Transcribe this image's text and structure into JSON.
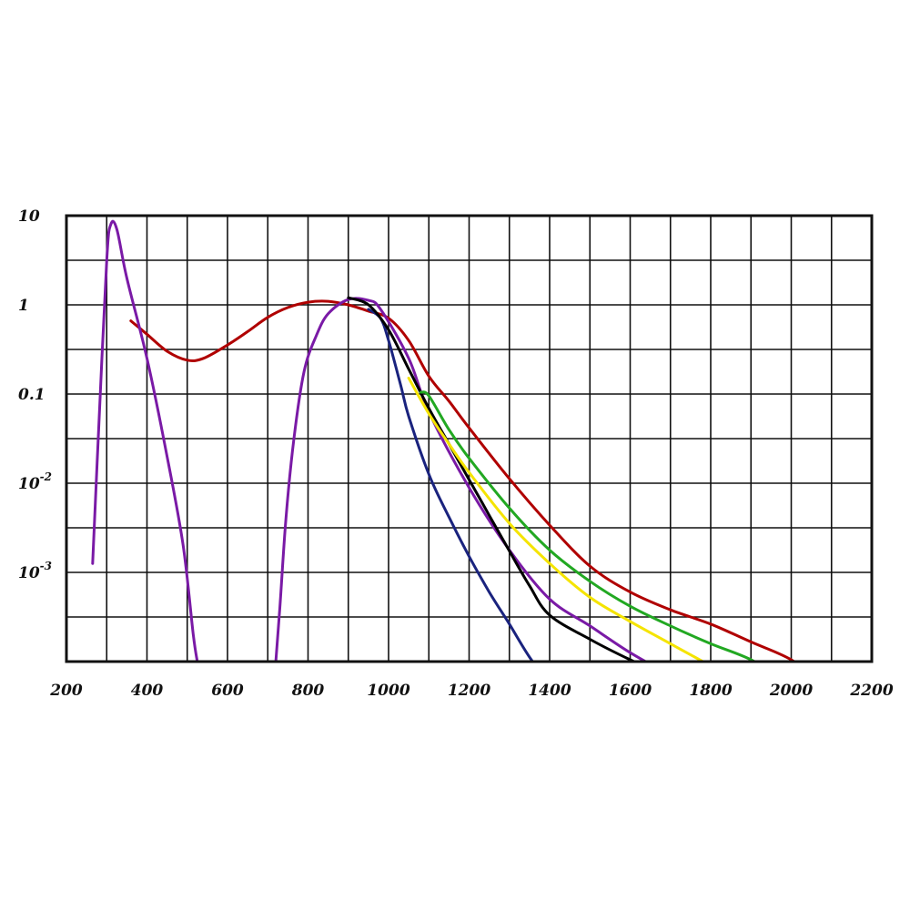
{
  "chart_data": {
    "type": "line",
    "title": "",
    "xlabel": "",
    "ylabel": "",
    "x_range": [
      200,
      2200
    ],
    "y_scale": "log",
    "y_range_log10": [
      -4,
      1
    ],
    "grid": true,
    "x_grid_step": 100,
    "y_grid_step_log10": 0.5,
    "x_tick_labels": [
      {
        "value": 200,
        "label": "200"
      },
      {
        "value": 400,
        "label": "400"
      },
      {
        "value": 600,
        "label": "600"
      },
      {
        "value": 800,
        "label": "800"
      },
      {
        "value": 1000,
        "label": "1000"
      },
      {
        "value": 1200,
        "label": "1200"
      },
      {
        "value": 1400,
        "label": "1400"
      },
      {
        "value": 1600,
        "label": "1600"
      },
      {
        "value": 1800,
        "label": "1800"
      },
      {
        "value": 2000,
        "label": "2000"
      },
      {
        "value": 2200,
        "label": "2200"
      }
    ],
    "y_tick_labels": [
      {
        "log10": 1,
        "label": "10",
        "sup": ""
      },
      {
        "log10": 0,
        "label": "1",
        "sup": ""
      },
      {
        "log10": -1,
        "label": "0.1",
        "sup": ""
      },
      {
        "log10": -2,
        "label": "10",
        "sup": "-2"
      },
      {
        "log10": -3,
        "label": "10",
        "sup": "-3"
      }
    ],
    "series": [
      {
        "color": "#b00000",
        "points": [
          [
            360,
            -0.18
          ],
          [
            400,
            -0.33
          ],
          [
            450,
            -0.52
          ],
          [
            500,
            -0.62
          ],
          [
            540,
            -0.6
          ],
          [
            600,
            -0.45
          ],
          [
            650,
            -0.3
          ],
          [
            700,
            -0.14
          ],
          [
            750,
            -0.03
          ],
          [
            800,
            0.03
          ],
          [
            850,
            0.04
          ],
          [
            900,
            0
          ],
          [
            950,
            -0.07
          ],
          [
            1000,
            -0.15
          ],
          [
            1050,
            -0.4
          ],
          [
            1100,
            -0.8
          ],
          [
            1150,
            -1.08
          ],
          [
            1200,
            -1.38
          ],
          [
            1300,
            -1.95
          ],
          [
            1400,
            -2.47
          ],
          [
            1500,
            -2.93
          ],
          [
            1600,
            -3.22
          ],
          [
            1700,
            -3.42
          ],
          [
            1800,
            -3.58
          ],
          [
            1900,
            -3.78
          ],
          [
            2000,
            -3.98
          ],
          [
            2090,
            -4.28
          ]
        ]
      },
      {
        "color": "#7a1aa6",
        "points": [
          [
            265,
            -2.9
          ],
          [
            280,
            -1.4
          ],
          [
            300,
            0.5
          ],
          [
            310,
            0.9
          ],
          [
            325,
            0.85
          ],
          [
            350,
            0.3
          ],
          [
            400,
            -0.6
          ],
          [
            450,
            -1.7
          ],
          [
            490,
            -2.7
          ],
          [
            515,
            -3.7
          ],
          [
            525,
            -4.0
          ]
        ]
      },
      {
        "color": "#7a1aa6",
        "points": [
          [
            720,
            -4.0
          ],
          [
            730,
            -3.4
          ],
          [
            745,
            -2.4
          ],
          [
            765,
            -1.5
          ],
          [
            790,
            -0.75
          ],
          [
            820,
            -0.35
          ],
          [
            850,
            -0.1
          ],
          [
            900,
            0.06
          ],
          [
            950,
            0.05
          ],
          [
            980,
            -0.05
          ],
          [
            1050,
            -0.6
          ],
          [
            1100,
            -1.2
          ],
          [
            1200,
            -2.05
          ],
          [
            1300,
            -2.75
          ],
          [
            1400,
            -3.3
          ],
          [
            1500,
            -3.6
          ],
          [
            1600,
            -3.9
          ],
          [
            1700,
            -4.15
          ],
          [
            1780,
            -4.32
          ]
        ]
      },
      {
        "color": "#1a237e",
        "points": [
          [
            950,
            -0.05
          ],
          [
            980,
            -0.15
          ],
          [
            1000,
            -0.4
          ],
          [
            1030,
            -0.9
          ],
          [
            1050,
            -1.25
          ],
          [
            1100,
            -1.9
          ],
          [
            1150,
            -2.38
          ],
          [
            1200,
            -2.82
          ],
          [
            1250,
            -3.22
          ],
          [
            1300,
            -3.58
          ],
          [
            1350,
            -3.95
          ],
          [
            1400,
            -4.25
          ],
          [
            1425,
            -4.35
          ]
        ]
      },
      {
        "color": "#000000",
        "points": [
          [
            900,
            0.08
          ],
          [
            950,
            0
          ],
          [
            1000,
            -0.28
          ],
          [
            1050,
            -0.72
          ],
          [
            1100,
            -1.16
          ],
          [
            1150,
            -1.56
          ],
          [
            1200,
            -1.96
          ],
          [
            1250,
            -2.36
          ],
          [
            1300,
            -2.76
          ],
          [
            1350,
            -3.15
          ],
          [
            1400,
            -3.48
          ],
          [
            1500,
            -3.75
          ],
          [
            1600,
            -3.98
          ],
          [
            1700,
            -4.18
          ],
          [
            1750,
            -4.3
          ]
        ]
      },
      {
        "color": "#f5e400",
        "points": [
          [
            1050,
            -0.82
          ],
          [
            1100,
            -1.22
          ],
          [
            1150,
            -1.56
          ],
          [
            1200,
            -1.88
          ],
          [
            1300,
            -2.45
          ],
          [
            1400,
            -2.9
          ],
          [
            1500,
            -3.28
          ],
          [
            1600,
            -3.55
          ],
          [
            1700,
            -3.8
          ],
          [
            1800,
            -4.05
          ],
          [
            1850,
            -4.2
          ]
        ]
      },
      {
        "color": "#22a822",
        "points": [
          [
            1080,
            -0.98
          ],
          [
            1100,
            -1.02
          ],
          [
            1150,
            -1.4
          ],
          [
            1200,
            -1.72
          ],
          [
            1300,
            -2.28
          ],
          [
            1400,
            -2.75
          ],
          [
            1500,
            -3.1
          ],
          [
            1600,
            -3.38
          ],
          [
            1700,
            -3.6
          ],
          [
            1800,
            -3.8
          ],
          [
            1900,
            -3.98
          ],
          [
            2000,
            -4.25
          ],
          [
            2095,
            -4.52
          ]
        ]
      }
    ]
  }
}
